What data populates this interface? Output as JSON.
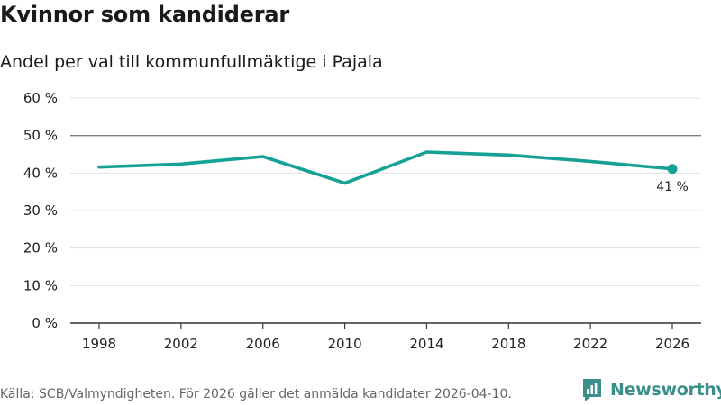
{
  "header": {
    "title": "Kvinnor som kandiderar",
    "subtitle": "Andel per val till kommunfullmäktige i Pajala"
  },
  "footer": {
    "source": "Källa: SCB/Valmyndigheten. För 2026 gäller det anmälda kandidater 2026-04-10.",
    "brand": "Newsworthy"
  },
  "colors": {
    "line": "#16a196",
    "grid": "#e0e0e0",
    "reference": "#7a7a7a",
    "brand": "#3a8f8a"
  },
  "chart_data": {
    "type": "line",
    "title": "Kvinnor som kandiderar",
    "subtitle": "Andel per val till kommunfullmäktige i Pajala",
    "xlabel": "",
    "ylabel": "",
    "x": [
      1998,
      2002,
      2006,
      2010,
      2014,
      2018,
      2022,
      2026
    ],
    "x_tick_labels": [
      "1998",
      "2002",
      "2006",
      "2010",
      "2014",
      "2018",
      "2022",
      "2026"
    ],
    "series": [
      {
        "name": "Andel kvinnor",
        "values": [
          41.6,
          42.4,
          44.4,
          37.3,
          45.6,
          44.8,
          43.1,
          41.1
        ]
      }
    ],
    "ylim": [
      0,
      60
    ],
    "y_ticks": [
      0,
      10,
      20,
      30,
      40,
      50,
      60
    ],
    "y_tick_labels": [
      "0 %",
      "10 %",
      "20 %",
      "30 %",
      "40 %",
      "50 %",
      "60 %"
    ],
    "reference_line": 50,
    "end_label": "41 %",
    "grid": true,
    "legend": "none"
  }
}
